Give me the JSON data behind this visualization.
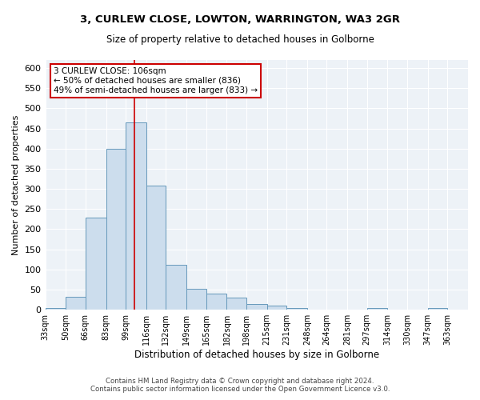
{
  "title1": "3, CURLEW CLOSE, LOWTON, WARRINGTON, WA3 2GR",
  "title2": "Size of property relative to detached houses in Golborne",
  "xlabel": "Distribution of detached houses by size in Golborne",
  "ylabel": "Number of detached properties",
  "footnote1": "Contains HM Land Registry data © Crown copyright and database right 2024.",
  "footnote2": "Contains public sector information licensed under the Open Government Licence v3.0.",
  "annotation_title": "3 CURLEW CLOSE: 106sqm",
  "annotation_line2": "← 50% of detached houses are smaller (836)",
  "annotation_line3": "49% of semi-detached houses are larger (833) →",
  "property_size": 106,
  "bar_color": "#ccdded",
  "bar_edge_color": "#6699bb",
  "vline_color": "#cc0000",
  "background_color": "#edf2f7",
  "categories": [
    "33sqm",
    "50sqm",
    "66sqm",
    "83sqm",
    "99sqm",
    "116sqm",
    "132sqm",
    "149sqm",
    "165sqm",
    "182sqm",
    "198sqm",
    "215sqm",
    "231sqm",
    "248sqm",
    "264sqm",
    "281sqm",
    "297sqm",
    "314sqm",
    "330sqm",
    "347sqm",
    "363sqm"
  ],
  "bin_edges": [
    33,
    50,
    66,
    83,
    99,
    116,
    132,
    149,
    165,
    182,
    198,
    215,
    231,
    248,
    264,
    281,
    297,
    314,
    330,
    347,
    363,
    380
  ],
  "counts": [
    5,
    32,
    228,
    400,
    465,
    308,
    111,
    53,
    40,
    30,
    15,
    11,
    5,
    0,
    0,
    0,
    5,
    0,
    0,
    5,
    0
  ],
  "ylim": [
    0,
    620
  ],
  "yticks": [
    0,
    50,
    100,
    150,
    200,
    250,
    300,
    350,
    400,
    450,
    500,
    550,
    600
  ]
}
